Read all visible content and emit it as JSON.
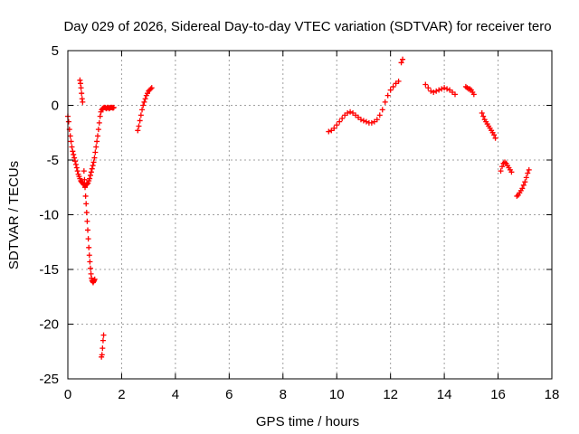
{
  "chart_data": {
    "type": "scatter",
    "title": "Day 029 of 2026, Sidereal Day-to-day VTEC variation (SDTVAR) for receiver tero",
    "xlabel": "GPS time / hours",
    "ylabel": "SDTVAR / TECUs",
    "xlim": [
      0,
      18
    ],
    "ylim": [
      -25,
      5
    ],
    "xticks": [
      0,
      2,
      4,
      6,
      8,
      10,
      12,
      14,
      16,
      18
    ],
    "yticks": [
      -25,
      -20,
      -15,
      -10,
      -5,
      0,
      5
    ],
    "grid": true,
    "marker": "+",
    "series": [
      {
        "color": "#ff0000",
        "x": [
          0.0,
          0.03,
          0.06,
          0.09,
          0.12,
          0.15,
          0.18,
          0.21,
          0.24,
          0.27,
          0.3,
          0.33,
          0.36,
          0.39,
          0.42,
          0.45,
          0.48,
          0.51,
          0.54,
          0.57,
          0.6,
          0.63,
          0.66,
          0.69,
          0.72,
          0.75,
          0.78,
          0.81,
          0.84,
          0.87,
          0.9,
          0.93,
          0.96,
          0.99,
          1.02,
          1.05,
          1.08,
          1.11,
          1.14,
          1.17,
          1.2,
          1.23,
          1.26,
          1.29,
          1.32,
          1.35,
          1.38,
          1.41,
          1.44,
          1.47,
          1.5,
          1.53,
          1.56,
          1.59,
          1.62,
          1.65,
          1.68,
          1.71,
          0.45,
          0.47,
          0.49,
          0.51,
          0.53,
          0.55,
          0.6,
          0.62,
          0.64,
          0.66,
          0.68,
          0.7,
          0.72,
          0.74,
          0.76,
          0.78,
          0.8,
          0.82,
          0.84,
          0.86,
          0.88,
          0.9,
          0.92,
          0.94,
          0.96,
          0.98,
          1.0,
          1.25,
          1.27,
          1.29,
          1.31,
          1.33,
          2.6,
          2.64,
          2.68,
          2.72,
          2.76,
          2.8,
          2.84,
          2.88,
          2.92,
          2.96,
          3.0,
          3.04,
          3.08,
          3.12,
          9.7,
          9.8,
          9.9,
          10.0,
          10.1,
          10.2,
          10.3,
          10.4,
          10.5,
          10.6,
          10.7,
          10.8,
          10.9,
          11.0,
          11.1,
          11.2,
          11.3,
          11.4,
          11.5,
          11.6,
          11.7,
          11.8,
          11.9,
          12.0,
          12.1,
          12.2,
          12.3,
          12.4,
          12.45,
          13.3,
          13.4,
          13.5,
          13.6,
          13.7,
          13.8,
          13.9,
          14.0,
          14.1,
          14.2,
          14.3,
          14.4,
          14.8,
          14.85,
          14.9,
          14.95,
          15.0,
          15.05,
          15.1,
          15.4,
          15.45,
          15.5,
          15.55,
          15.6,
          15.65,
          15.7,
          15.75,
          15.8,
          15.85,
          15.9,
          16.1,
          16.15,
          16.2,
          16.25,
          16.3,
          16.35,
          16.4,
          16.45,
          16.5,
          16.7,
          16.75,
          16.8,
          16.85,
          16.9,
          16.95,
          17.0,
          17.05,
          17.1,
          17.15
        ],
        "y": [
          -1.0,
          -1.5,
          -2.2,
          -2.8,
          -3.3,
          -3.8,
          -4.2,
          -4.5,
          -4.8,
          -5.1,
          -5.4,
          -5.7,
          -6.0,
          -6.3,
          -6.5,
          -6.7,
          -6.9,
          -7.0,
          -7.1,
          -7.2,
          -7.25,
          -7.3,
          -7.3,
          -7.25,
          -7.2,
          -7.1,
          -6.9,
          -6.7,
          -6.4,
          -6.1,
          -5.8,
          -5.5,
          -5.2,
          -4.8,
          -4.3,
          -3.8,
          -3.3,
          -2.8,
          -2.2,
          -1.6,
          -1.0,
          -0.6,
          -0.4,
          -0.3,
          -0.25,
          -0.2,
          -0.2,
          -0.25,
          -0.3,
          -0.2,
          -0.2,
          -0.3,
          -0.25,
          -0.2,
          -0.2,
          -0.2,
          -0.25,
          -0.2,
          2.3,
          2.0,
          1.6,
          1.1,
          0.6,
          0.3,
          -6.0,
          -6.8,
          -7.5,
          -8.3,
          -9.0,
          -9.8,
          -10.6,
          -11.4,
          -12.2,
          -13.0,
          -13.7,
          -14.3,
          -14.9,
          -15.4,
          -15.8,
          -16.0,
          -16.1,
          -16.2,
          -16.1,
          -16.0,
          -15.9,
          -23.0,
          -22.8,
          -22.2,
          -21.5,
          -21.0,
          -2.3,
          -1.9,
          -1.4,
          -0.9,
          -0.4,
          0.0,
          0.3,
          0.6,
          0.9,
          1.1,
          1.3,
          1.4,
          1.5,
          1.6,
          -2.4,
          -2.3,
          -2.1,
          -1.8,
          -1.5,
          -1.2,
          -0.9,
          -0.7,
          -0.6,
          -0.7,
          -0.9,
          -1.1,
          -1.3,
          -1.4,
          -1.5,
          -1.6,
          -1.6,
          -1.5,
          -1.3,
          -0.9,
          -0.4,
          0.3,
          0.9,
          1.4,
          1.7,
          2.0,
          2.2,
          3.9,
          4.2,
          1.9,
          1.6,
          1.3,
          1.2,
          1.3,
          1.4,
          1.5,
          1.6,
          1.5,
          1.4,
          1.2,
          1.0,
          1.7,
          1.6,
          1.5,
          1.5,
          1.4,
          1.2,
          1.0,
          -0.7,
          -1.0,
          -1.3,
          -1.5,
          -1.7,
          -1.9,
          -2.1,
          -2.3,
          -2.5,
          -2.7,
          -3.0,
          -6.0,
          -5.6,
          -5.3,
          -5.2,
          -5.3,
          -5.5,
          -5.7,
          -5.9,
          -6.1,
          -8.3,
          -8.2,
          -8.0,
          -7.8,
          -7.6,
          -7.3,
          -7.0,
          -6.6,
          -6.2,
          -5.9
        ]
      }
    ]
  }
}
